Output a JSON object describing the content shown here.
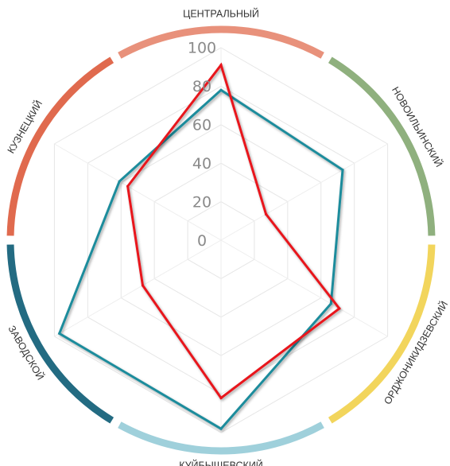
{
  "chart_data": {
    "type": "radar",
    "title": "",
    "categories": [
      "ЦЕНТРАЛЬНЫЙ",
      "НОВОИЛЬИНСКИЙ",
      "ОРДЖОНИКИДЗЕВСКИЙ",
      "КУЙБЫШЕВСКИЙ",
      "ЗАВОДСКОЙ",
      "КУЗНЕЦКИЙ"
    ],
    "category_colors": [
      "#e8917b",
      "#8fb07e",
      "#f2d55c",
      "#9fd0db",
      "#236b82",
      "#e06a4e"
    ],
    "radial_ticks": [
      "100",
      "80",
      "60",
      "40",
      "20",
      "0"
    ],
    "rlim": [
      0,
      100
    ],
    "grid": true,
    "series": [
      {
        "name": "",
        "color": "#1f8c9c",
        "values": [
          78,
          73,
          66,
          98,
          97,
          61
        ]
      },
      {
        "name": "",
        "color": "#e8141c",
        "values": [
          91,
          27,
          71,
          82,
          47,
          56
        ]
      }
    ]
  }
}
